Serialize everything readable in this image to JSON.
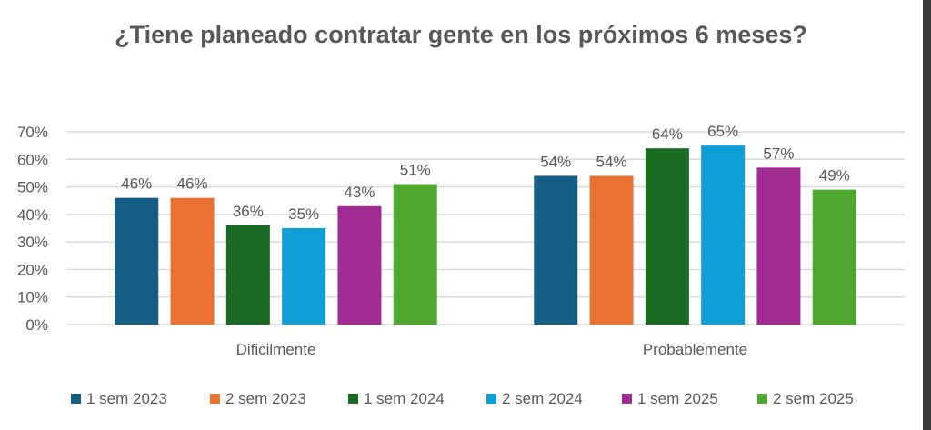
{
  "chart_data": {
    "type": "bar",
    "title": "¿Tiene planeado contratar gente en los próximos 6 meses?",
    "categories": [
      "Dificilmente",
      "Probablemente"
    ],
    "ylim": [
      0,
      70
    ],
    "yticks": [
      "0%",
      "10%",
      "20%",
      "30%",
      "40%",
      "50%",
      "60%",
      "70%"
    ],
    "grid": true,
    "legend_position": "bottom",
    "series": [
      {
        "name": "1 sem 2023",
        "values": [
          46,
          54
        ],
        "labels": [
          "46%",
          "54%"
        ],
        "color": "#165E83"
      },
      {
        "name": "2 sem 2023",
        "values": [
          46,
          54
        ],
        "labels": [
          "46%",
          "54%"
        ],
        "color": "#E97132"
      },
      {
        "name": "1 sem 2024",
        "values": [
          36,
          64
        ],
        "labels": [
          "36%",
          "64%"
        ],
        "color": "#196B24"
      },
      {
        "name": "2 sem 2024",
        "values": [
          35,
          65
        ],
        "labels": [
          "35%",
          "65%"
        ],
        "color": "#0F9ED5"
      },
      {
        "name": "1 sem 2025",
        "values": [
          43,
          57
        ],
        "labels": [
          "43%",
          "57%"
        ],
        "color": "#A02B93"
      },
      {
        "name": "2 sem 2025",
        "values": [
          51,
          49
        ],
        "labels": [
          "51%",
          "49%"
        ],
        "color": "#4EA72E"
      }
    ]
  }
}
